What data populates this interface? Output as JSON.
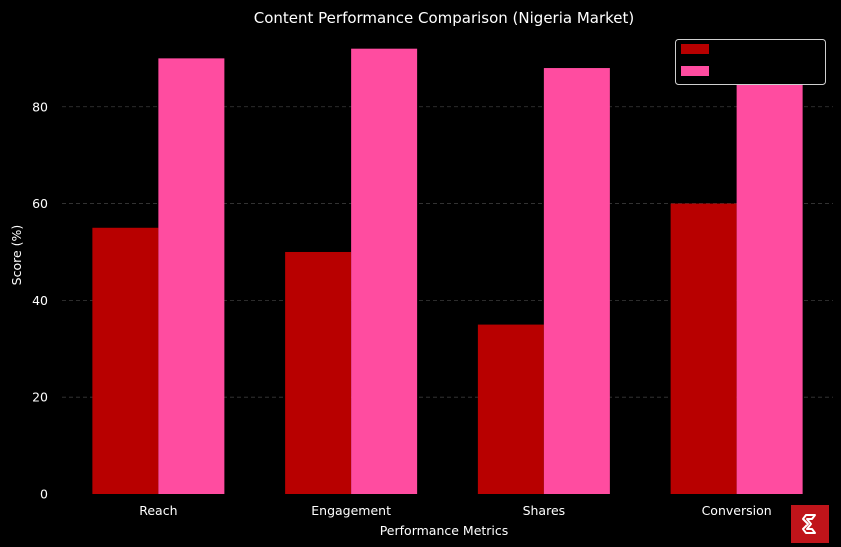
{
  "chart_data": {
    "type": "bar",
    "title": "Content Performance Comparison (Nigeria Market)",
    "xlabel": "Performance Metrics",
    "ylabel": "Score (%)",
    "categories": [
      "Reach",
      "Engagement",
      "Shares",
      "Conversion"
    ],
    "series": [
      {
        "values": [
          55,
          50,
          35,
          60
        ],
        "color": "#b80000"
      },
      {
        "values": [
          90,
          92,
          88,
          85
        ],
        "color": "#ff4ca0"
      }
    ],
    "ylim": [
      0,
      94
    ],
    "yticks": [
      0,
      20,
      40,
      60,
      80
    ],
    "grid": true,
    "legend_position": "top-right",
    "background": "#000000",
    "text_color": "#ffffff"
  },
  "logo": {
    "icon": "brand-s-logo-icon",
    "color": "#c0141a"
  }
}
